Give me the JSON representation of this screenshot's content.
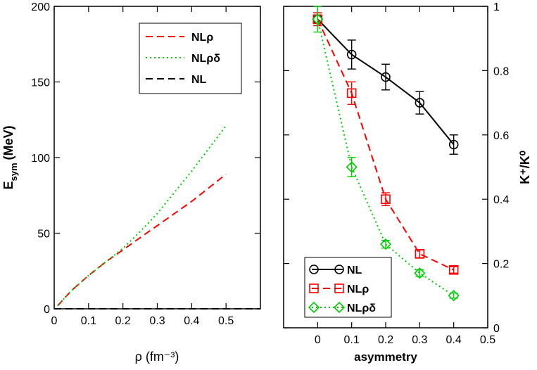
{
  "chart_data": [
    {
      "type": "line",
      "xlabel": "ρ (fm⁻³)",
      "ylabel_main": "E",
      "ylabel_sub": "sym",
      "ylabel_unit": "(MeV)",
      "xlim": [
        0,
        0.6
      ],
      "ylim": [
        0,
        200
      ],
      "xticks": [
        "0",
        "0.1",
        "0.2",
        "0.3",
        "0.4",
        "0.5"
      ],
      "yticks": [
        "0",
        "50",
        "100",
        "150",
        "200"
      ],
      "legend_position": "top-right",
      "series": [
        {
          "name": "NLρ",
          "color": "#ff0000",
          "dash": "dashed",
          "x": [
            0.01,
            0.05,
            0.1,
            0.15,
            0.2,
            0.25,
            0.3,
            0.35,
            0.4,
            0.45,
            0.5
          ],
          "y": [
            2,
            12,
            22,
            31,
            39,
            47,
            55,
            63,
            71,
            80,
            89
          ]
        },
        {
          "name": "NLρδ",
          "color": "#00cc00",
          "dash": "dotted",
          "x": [
            0.01,
            0.05,
            0.1,
            0.15,
            0.2,
            0.25,
            0.3,
            0.35,
            0.4,
            0.45,
            0.5
          ],
          "y": [
            2,
            12,
            22,
            31,
            40,
            51,
            63,
            77,
            91,
            106,
            121
          ]
        },
        {
          "name": "NL",
          "color": "#000000",
          "dash": "dashed",
          "x": [
            0,
            0.6
          ],
          "y": [
            0,
            0
          ]
        }
      ]
    },
    {
      "type": "line",
      "xlabel": "asymmetry",
      "ylabel": "K⁺/K⁰",
      "xlim": [
        -0.1,
        0.5
      ],
      "ylim": [
        0,
        1
      ],
      "xticks": [
        "0",
        "0.1",
        "0.2",
        "0.3",
        "0.4",
        "0.5"
      ],
      "yticks": [
        "0",
        "0.2",
        "0.4",
        "0.6",
        "0.8",
        "1"
      ],
      "legend_position": "bottom-left",
      "series": [
        {
          "name": "NL",
          "color": "#000000",
          "dash": "solid",
          "marker": "circle",
          "x": [
            0,
            0.1,
            0.2,
            0.3,
            0.4
          ],
          "y": [
            0.96,
            0.85,
            0.78,
            0.7,
            0.57
          ],
          "err": [
            0.02,
            0.045,
            0.04,
            0.035,
            0.03
          ]
        },
        {
          "name": "NLρ",
          "color": "#ff0000",
          "dash": "dashed",
          "marker": "square",
          "x": [
            0,
            0.1,
            0.2,
            0.3,
            0.4
          ],
          "y": [
            0.96,
            0.73,
            0.4,
            0.23,
            0.18
          ],
          "err": [
            0.02,
            0.035,
            0.02,
            0.012,
            0.01
          ]
        },
        {
          "name": "NLρδ",
          "color": "#00cc00",
          "dash": "dotted",
          "marker": "diamond",
          "x": [
            0,
            0.1,
            0.2,
            0.3,
            0.4
          ],
          "y": [
            0.96,
            0.5,
            0.26,
            0.17,
            0.1
          ],
          "err": [
            0.04,
            0.03,
            0.012,
            0.01,
            0.008
          ]
        }
      ]
    }
  ]
}
